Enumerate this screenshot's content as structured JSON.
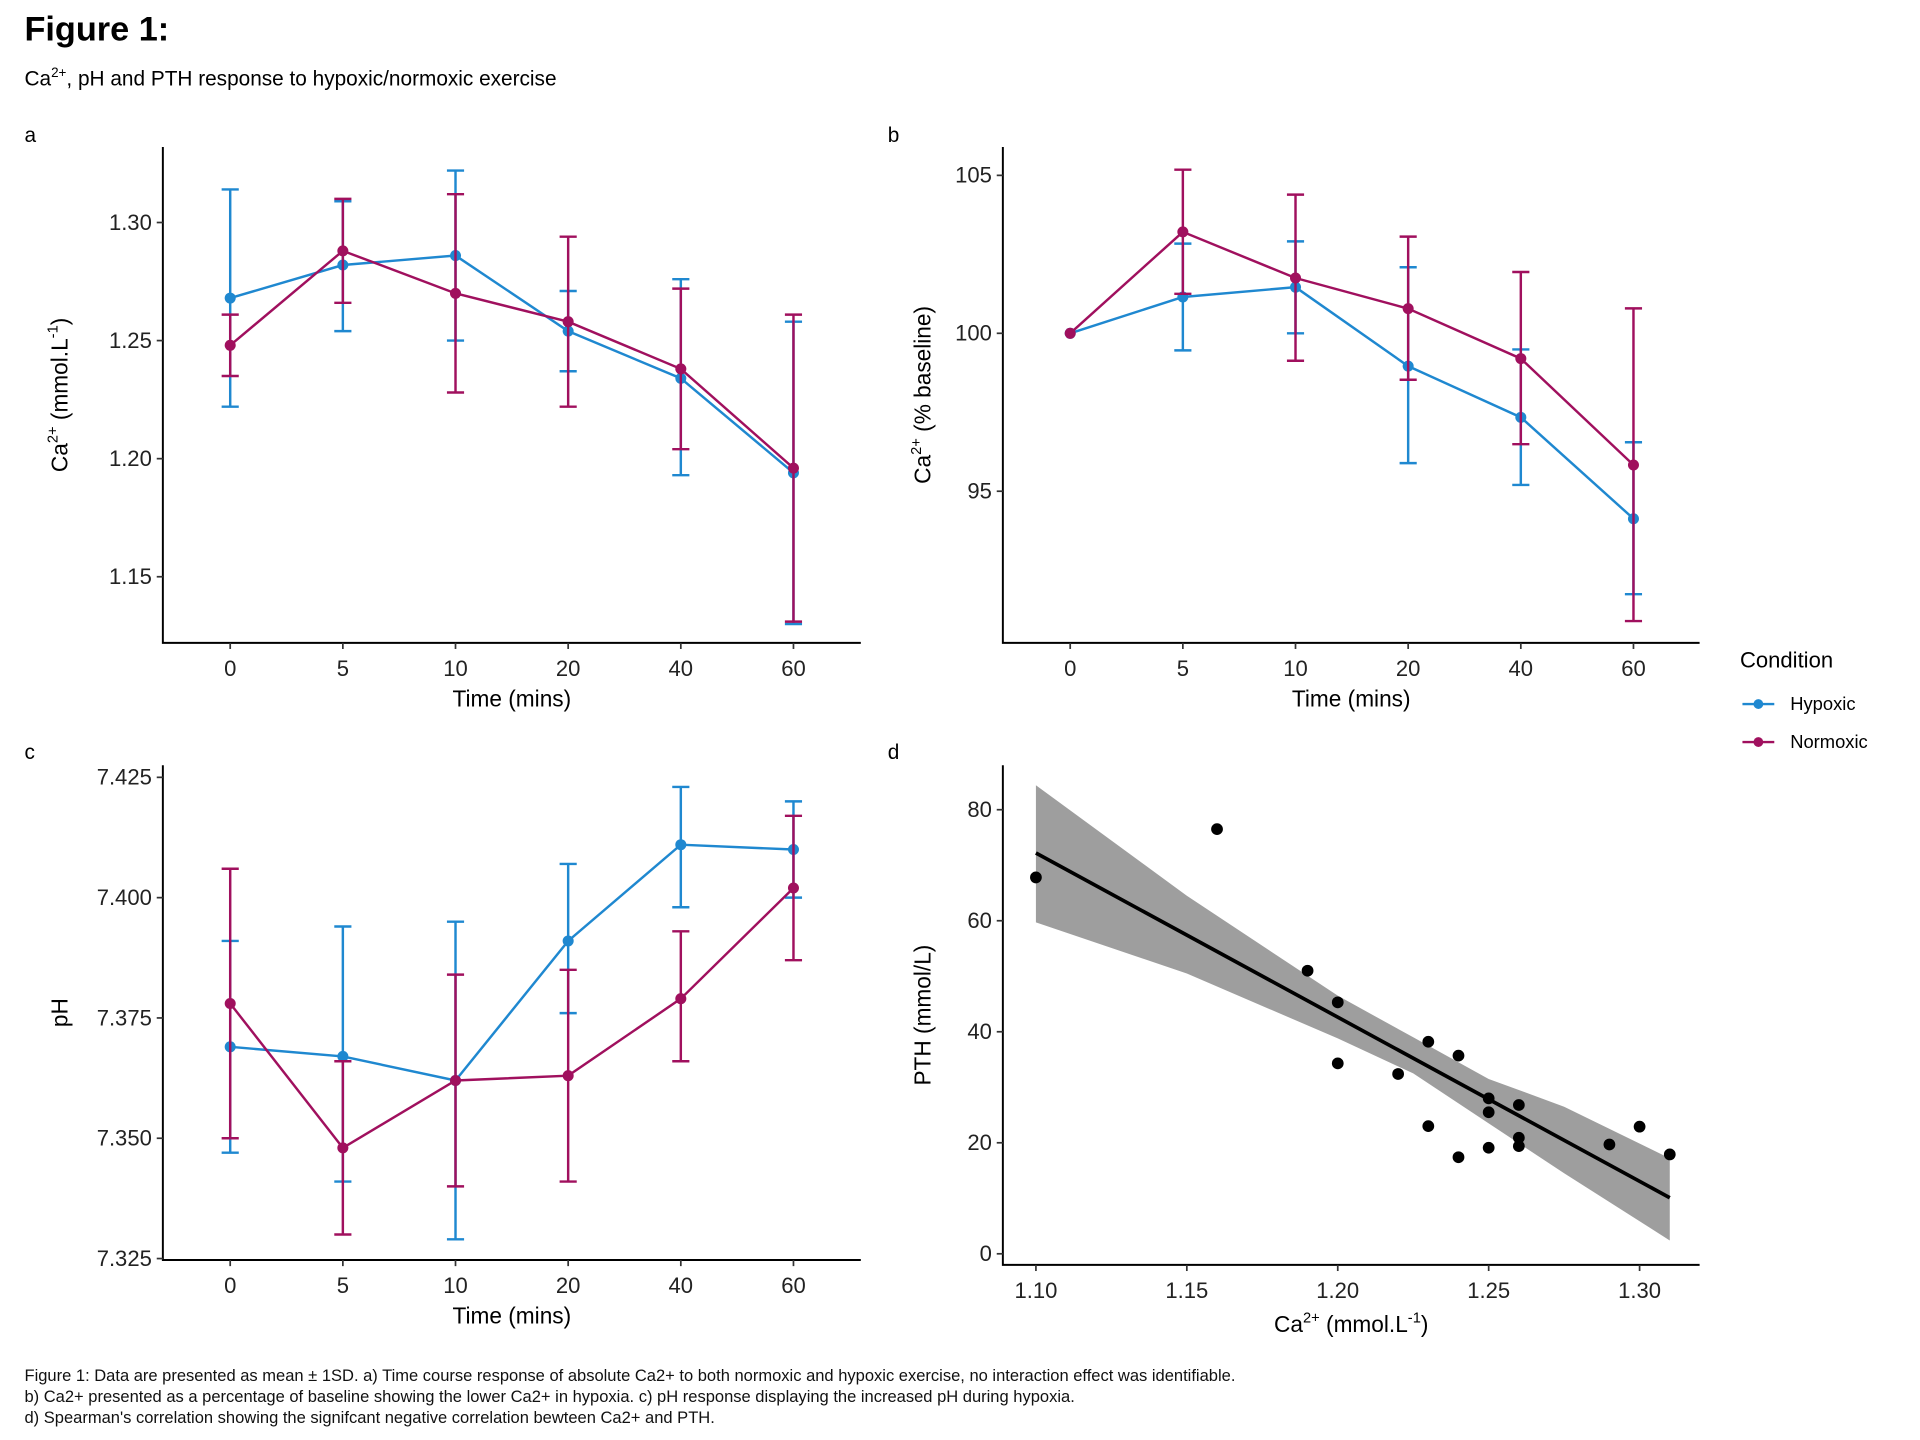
{
  "figure": {
    "title": "Figure 1:",
    "subtitle_prefix": "Ca",
    "subtitle_sup": "2+",
    "subtitle_rest": ", pH and PTH response to hypoxic/normoxic exercise",
    "caption_lines": [
      "Figure 1: Data are presented as mean ± 1SD. a) Time course response of absolute Ca2+ to both normoxic and hypoxic exercise, no interaction effect was identifiable.",
      "b) Ca2+ presented as a percentage of baseline showing the lower Ca2+ in hypoxia. c) pH response displaying the increased pH during hypoxia.",
      "d) Spearman's correlation showing the signifcant negative correlation bewteen Ca2+ and PTH."
    ]
  },
  "legend": {
    "title": "Condition",
    "placement": "right",
    "items": [
      {
        "label": "Hypoxic",
        "color": "#1f88d0"
      },
      {
        "label": "Normoxic",
        "color": "#a0105e"
      }
    ]
  },
  "colors": {
    "hypoxic": "#1f88d0",
    "normoxic": "#a0105e",
    "fit_line": "#000000",
    "ci_band": "#999999",
    "points": "#000000"
  },
  "chart_data": [
    {
      "panel": "a",
      "type": "line",
      "xlabel": "Time (mins)",
      "ylabel_parts": {
        "base": "Ca",
        "sup": "2+",
        "rest": " (mmol.L",
        "sup2": "-1",
        "end": ")"
      },
      "categories": [
        "0",
        "5",
        "10",
        "20",
        "40",
        "60"
      ],
      "yticks": [
        1.15,
        1.2,
        1.25,
        1.3
      ],
      "ytick_labels": [
        "1.15",
        "1.20",
        "1.25",
        "1.30"
      ],
      "ylim": [
        1.122,
        1.332
      ],
      "grid": false,
      "error_bars": "mean ± 1SD",
      "series": [
        {
          "name": "Hypoxic",
          "values": [
            1.268,
            1.282,
            1.286,
            1.254,
            1.234,
            1.194
          ],
          "lower": [
            1.222,
            1.254,
            1.25,
            1.237,
            1.193,
            1.13
          ],
          "upper": [
            1.314,
            1.309,
            1.322,
            1.271,
            1.276,
            1.258
          ]
        },
        {
          "name": "Normoxic",
          "values": [
            1.248,
            1.288,
            1.27,
            1.258,
            1.238,
            1.196
          ],
          "lower": [
            1.235,
            1.266,
            1.228,
            1.222,
            1.204,
            1.131
          ],
          "upper": [
            1.261,
            1.31,
            1.312,
            1.294,
            1.272,
            1.261
          ]
        }
      ]
    },
    {
      "panel": "b",
      "type": "line",
      "xlabel": "Time (mins)",
      "ylabel_parts": {
        "base": "Ca",
        "sup": "2+",
        "rest": " (% baseline)",
        "sup2": "",
        "end": ""
      },
      "categories": [
        "0",
        "5",
        "10",
        "20",
        "40",
        "60"
      ],
      "yticks": [
        95,
        100,
        105
      ],
      "ytick_labels": [
        "95",
        "100",
        "105"
      ],
      "ylim": [
        90.2,
        105.9
      ],
      "grid": false,
      "error_bars": "mean ± 1SD",
      "series": [
        {
          "name": "Hypoxic",
          "values": [
            100,
            101.15,
            101.46,
            98.96,
            97.34,
            94.13
          ],
          "lower": [
            100,
            99.46,
            100.0,
            95.89,
            95.2,
            91.74
          ],
          "upper": [
            100,
            102.84,
            102.91,
            102.09,
            99.49,
            96.55
          ]
        },
        {
          "name": "Normoxic",
          "values": [
            100,
            103.21,
            101.75,
            100.78,
            99.2,
            95.83
          ],
          "lower": [
            100,
            101.25,
            99.13,
            98.53,
            96.49,
            90.89
          ],
          "upper": [
            100,
            105.18,
            104.39,
            103.06,
            101.94,
            100.79
          ]
        }
      ]
    },
    {
      "panel": "c",
      "type": "line",
      "xlabel": "Time (mins)",
      "ylabel_parts": {
        "base": "pH",
        "sup": "",
        "rest": "",
        "sup2": "",
        "end": ""
      },
      "categories": [
        "0",
        "5",
        "10",
        "20",
        "40",
        "60"
      ],
      "yticks": [
        7.325,
        7.35,
        7.375,
        7.4,
        7.425
      ],
      "ytick_labels": [
        "7.325",
        "7.350",
        "7.375",
        "7.400",
        "7.425"
      ],
      "ylim": [
        7.3247,
        7.4275
      ],
      "grid": false,
      "error_bars": "mean ± 1SD",
      "series": [
        {
          "name": "Hypoxic",
          "values": [
            7.369,
            7.367,
            7.362,
            7.391,
            7.411,
            7.41
          ],
          "lower": [
            7.347,
            7.341,
            7.329,
            7.376,
            7.398,
            7.4
          ],
          "upper": [
            7.391,
            7.394,
            7.395,
            7.407,
            7.423,
            7.42
          ]
        },
        {
          "name": "Normoxic",
          "values": [
            7.378,
            7.348,
            7.362,
            7.363,
            7.379,
            7.402
          ],
          "lower": [
            7.35,
            7.33,
            7.34,
            7.341,
            7.366,
            7.387
          ],
          "upper": [
            7.406,
            7.366,
            7.384,
            7.385,
            7.393,
            7.417
          ]
        }
      ]
    },
    {
      "panel": "d",
      "type": "scatter",
      "xlabel_parts": {
        "base": "Ca",
        "sup": "2+",
        "rest": " (mmol.L",
        "sup2": "-1",
        "end": ")"
      },
      "ylabel": "PTH (mmol/L)",
      "xticks": [
        1.1,
        1.15,
        1.2,
        1.25,
        1.3
      ],
      "xtick_labels": [
        "1.10",
        "1.15",
        "1.20",
        "1.25",
        "1.30"
      ],
      "yticks": [
        0,
        20,
        40,
        60,
        80
      ],
      "ytick_labels": [
        "0",
        "20",
        "40",
        "60",
        "80"
      ],
      "xlim": [
        1.089,
        1.32
      ],
      "ylim": [
        -2,
        88
      ],
      "grid": false,
      "points": [
        [
          1.1,
          67.8
        ],
        [
          1.16,
          76.5
        ],
        [
          1.19,
          51.0
        ],
        [
          1.2,
          45.3
        ],
        [
          1.2,
          34.3
        ],
        [
          1.22,
          32.4
        ],
        [
          1.23,
          38.2
        ],
        [
          1.23,
          23.0
        ],
        [
          1.24,
          35.7
        ],
        [
          1.24,
          17.4
        ],
        [
          1.25,
          28.0
        ],
        [
          1.25,
          25.5
        ],
        [
          1.25,
          19.1
        ],
        [
          1.26,
          26.8
        ],
        [
          1.26,
          20.9
        ],
        [
          1.26,
          19.4
        ],
        [
          1.29,
          19.7
        ],
        [
          1.3,
          22.9
        ],
        [
          1.31,
          17.9
        ]
      ],
      "fit": {
        "type": "linear",
        "x": [
          1.1,
          1.31
        ],
        "y": [
          72.2,
          10.1
        ]
      },
      "ci_band": {
        "x": [
          1.1,
          1.15,
          1.2,
          1.225,
          1.25,
          1.275,
          1.31
        ],
        "lower": [
          59.7,
          50.5,
          38.8,
          32.5,
          23.5,
          14.5,
          2.4
        ],
        "upper": [
          84.4,
          64.5,
          46.5,
          39.0,
          31.5,
          26.5,
          17.2
        ]
      }
    }
  ]
}
